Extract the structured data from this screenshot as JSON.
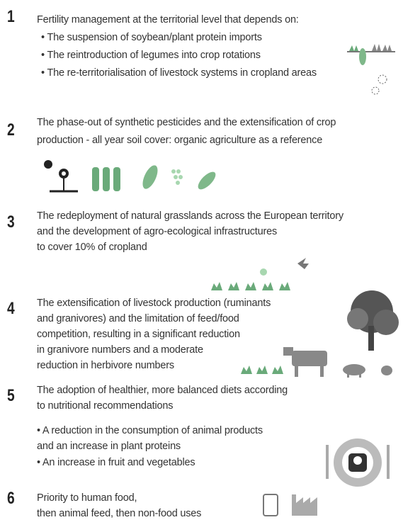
{
  "items": [
    {
      "number": "1",
      "lines": [
        "Fertility management at the territorial level that depends on:",
        "• The suspension of soybean/plant protein imports",
        "• The reintroduction of legumes into crop rotations",
        "• The re-territorialisation of livestock systems in cropland areas"
      ]
    },
    {
      "number": "2",
      "lines": [
        "The phase-out of synthetic pesticides and the extensification of crop",
        "production - all year soil cover: organic agriculture as a reference"
      ]
    },
    {
      "number": "3",
      "lines": [
        "The redeployment of natural grasslands across the European territory",
        "and the development of agro-ecological infrastructures",
        "to cover 10% of cropland"
      ]
    },
    {
      "number": "4",
      "lines": [
        "The extensification of livestock production (ruminants",
        "and granivores) and the limitation of feed/food",
        "competition, resulting in a significant reduction",
        "in granivore numbers and a moderate",
        "reduction in herbivore numbers"
      ]
    },
    {
      "number": "5",
      "lines": [
        "The adoption of healthier, more balanced diets according",
        "to nutritional recommendations",
        "• A reduction in the consumption of animal products",
        "and an increase in plant proteins",
        "• An increase in fruit and vegetables"
      ]
    },
    {
      "number": "6",
      "lines": [
        "Priority to human food,",
        "then animal feed, then non-food uses"
      ]
    }
  ]
}
